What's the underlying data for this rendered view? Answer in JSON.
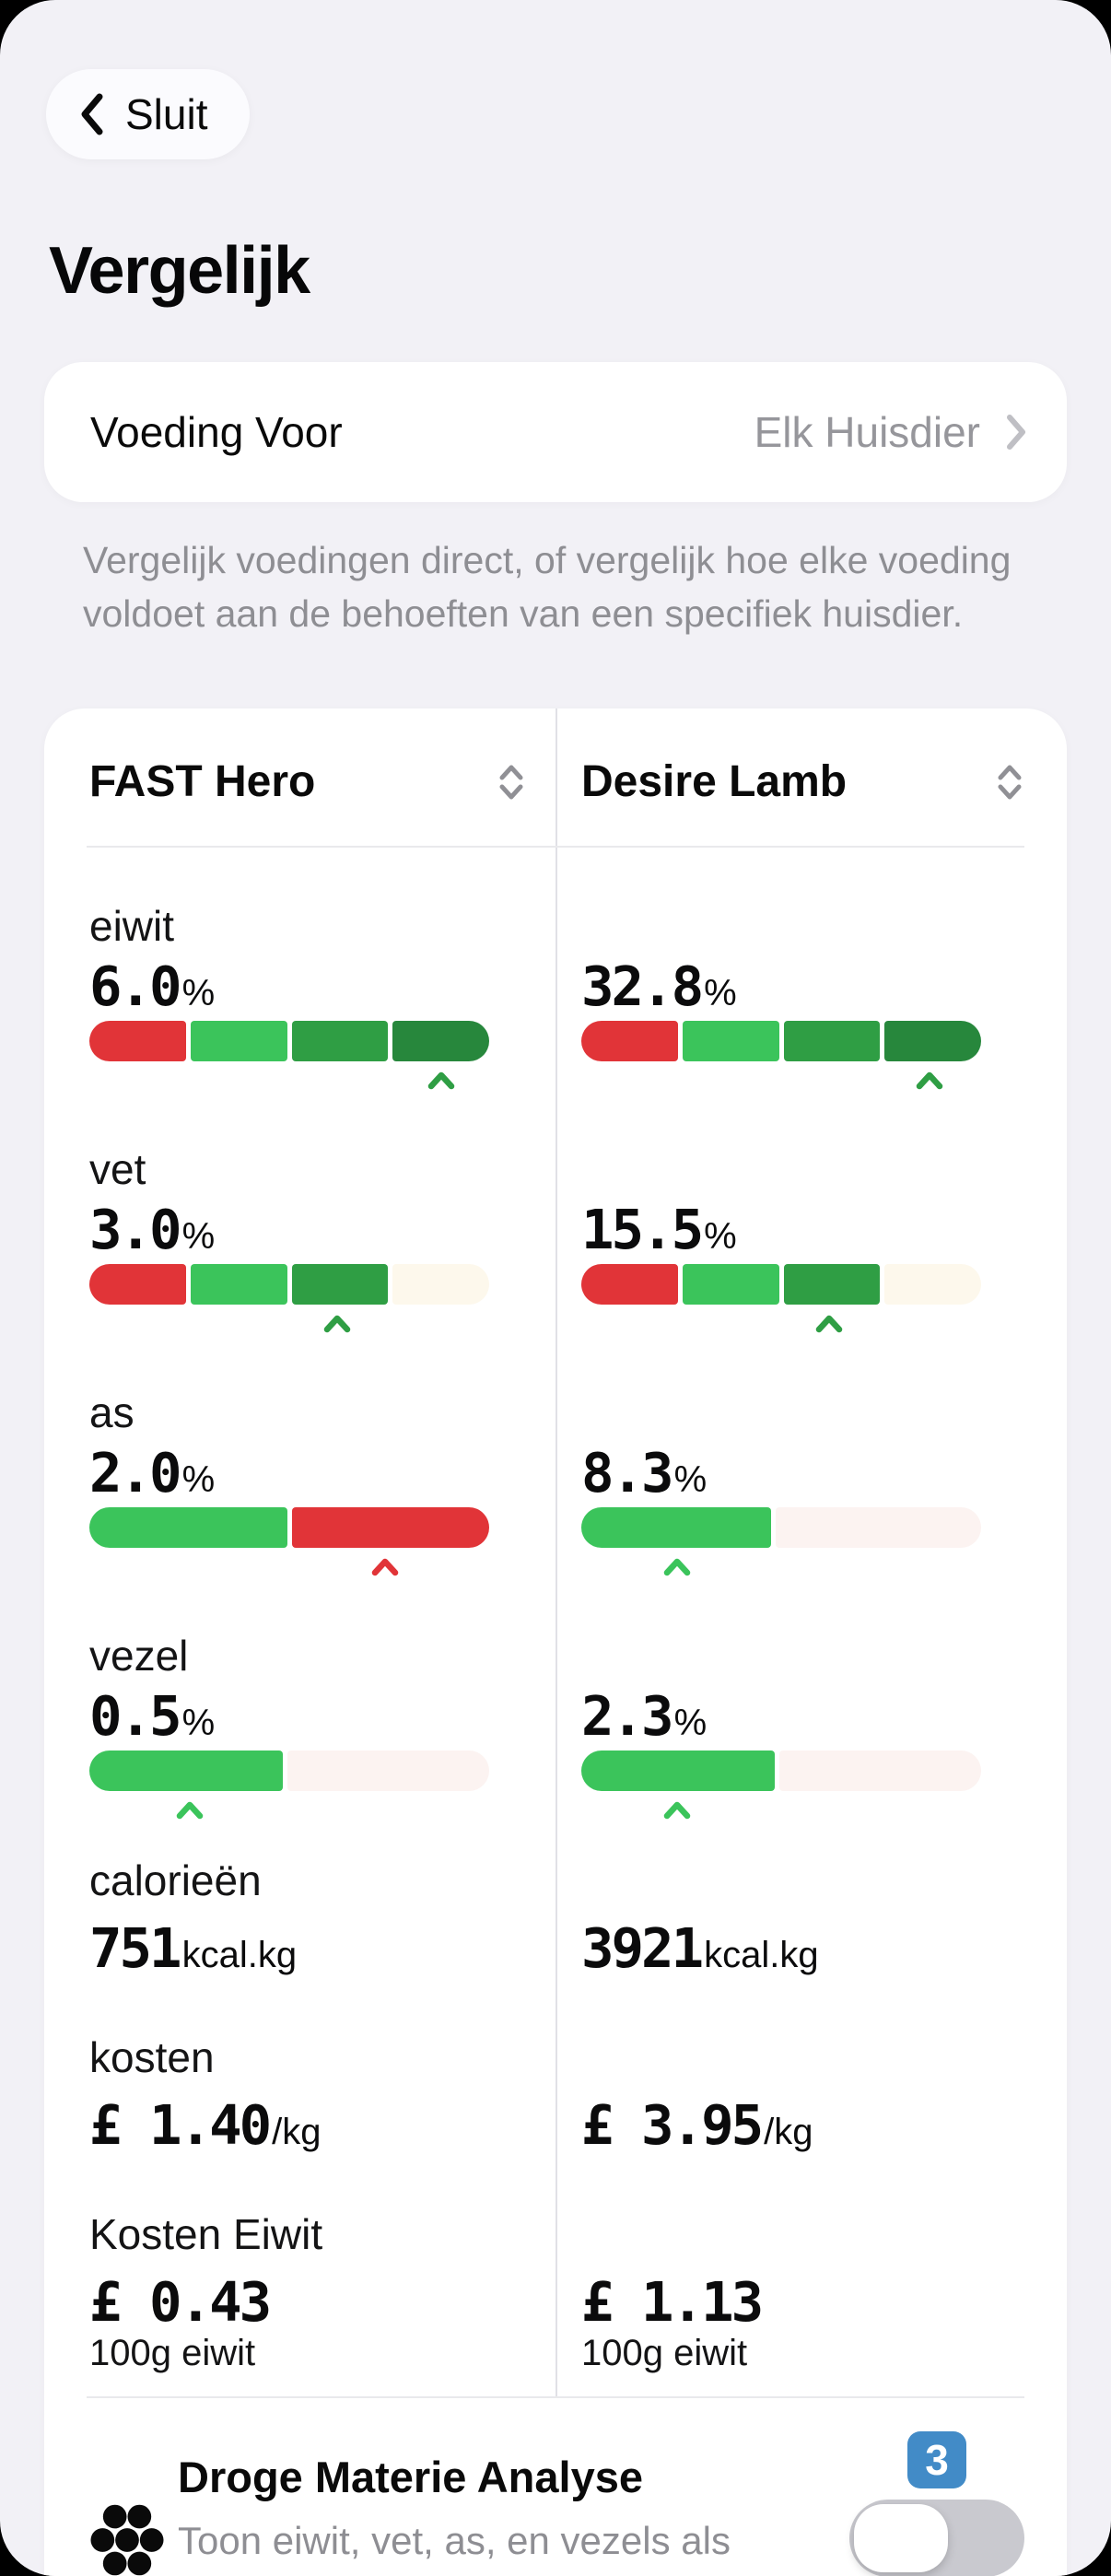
{
  "screen": {
    "back_button": {
      "label": "Sluit"
    },
    "title": "Vergelijk",
    "food_for": {
      "label": "Voeding Voor",
      "value": "Elk Huisdier"
    },
    "description": "Vergelijk voedingen direct, of vergelijk hoe elke voeding voldoet aan de behoeften van een specifiek huisdier."
  },
  "palette": {
    "background": "#F2F1F6",
    "card": "#FFFFFF",
    "red": "#E13438",
    "green_bright": "#3BC45B",
    "green_mid": "#2F9E44",
    "green_dark": "#27873C",
    "empty_cream": "#FDF8EC",
    "empty_pink": "#FCF3F1",
    "badge_blue": "#428BC7",
    "muted_text": "#8E8E93",
    "toggle_track": "#C9C9CF"
  },
  "table": {
    "columns": [
      {
        "name": "FAST Hero"
      },
      {
        "name": "Desire Lamb"
      }
    ],
    "rows": [
      {
        "label": "eiwit",
        "left": {
          "value": "6.0",
          "unit": "%",
          "bar": {
            "segments": [
              {
                "color": "#E13438",
                "width": 25
              },
              {
                "color": "#3BC45B",
                "width": 25
              },
              {
                "color": "#2F9E44",
                "width": 25
              },
              {
                "color": "#27873C",
                "width": 25
              }
            ],
            "caret": {
              "position": 88,
              "color": "#2F9E44"
            }
          }
        },
        "right": {
          "value": "32.8",
          "unit": "%",
          "bar": {
            "segments": [
              {
                "color": "#E13438",
                "width": 25
              },
              {
                "color": "#3BC45B",
                "width": 25
              },
              {
                "color": "#2F9E44",
                "width": 25
              },
              {
                "color": "#27873C",
                "width": 25
              }
            ],
            "caret": {
              "position": 87,
              "color": "#2F9E44"
            }
          }
        }
      },
      {
        "label": "vet",
        "left": {
          "value": "3.0",
          "unit": "%",
          "bar": {
            "segments": [
              {
                "color": "#E13438",
                "width": 25
              },
              {
                "color": "#3BC45B",
                "width": 25
              },
              {
                "color": "#2F9E44",
                "width": 25
              },
              {
                "color": "#FDF8EC",
                "width": 25
              }
            ],
            "caret": {
              "position": 62,
              "color": "#2F9E44"
            }
          }
        },
        "right": {
          "value": "15.5",
          "unit": "%",
          "bar": {
            "segments": [
              {
                "color": "#E13438",
                "width": 25
              },
              {
                "color": "#3BC45B",
                "width": 25
              },
              {
                "color": "#2F9E44",
                "width": 25
              },
              {
                "color": "#FDF8EC",
                "width": 25
              }
            ],
            "caret": {
              "position": 62,
              "color": "#2F9E44"
            }
          }
        }
      },
      {
        "label": "as",
        "left": {
          "value": "2.0",
          "unit": "%",
          "bar": {
            "segments": [
              {
                "color": "#3BC45B",
                "width": 50
              },
              {
                "color": "#E13438",
                "width": 50
              }
            ],
            "caret": {
              "position": 74,
              "color": "#E13438"
            }
          }
        },
        "right": {
          "value": "8.3",
          "unit": "%",
          "bar": {
            "segments": [
              {
                "color": "#3BC45B",
                "width": 48
              },
              {
                "color": "#FCF3F1",
                "width": 52
              }
            ],
            "caret": {
              "position": 24,
              "color": "#3BC45B"
            }
          }
        }
      },
      {
        "label": "vezel",
        "left": {
          "value": "0.5",
          "unit": "%",
          "bar": {
            "segments": [
              {
                "color": "#3BC45B",
                "width": 49
              },
              {
                "color": "#FCF3F1",
                "width": 51
              }
            ],
            "caret": {
              "position": 25,
              "color": "#3BC45B"
            }
          }
        },
        "right": {
          "value": "2.3",
          "unit": "%",
          "bar": {
            "segments": [
              {
                "color": "#3BC45B",
                "width": 49
              },
              {
                "color": "#FCF3F1",
                "width": 51
              }
            ],
            "caret": {
              "position": 24,
              "color": "#3BC45B"
            }
          }
        }
      },
      {
        "label": "calorieën",
        "left": {
          "value": "751",
          "unit": "kcal.kg"
        },
        "right": {
          "value": "3921",
          "unit": "kcal.kg"
        }
      },
      {
        "label": "kosten",
        "left": {
          "value": "£ 1.40",
          "unit": "/kg"
        },
        "right": {
          "value": "£ 3.95",
          "unit": "/kg"
        }
      },
      {
        "label": "Kosten Eiwit",
        "left": {
          "value": "£ 0.43",
          "sub": "100g eiwit"
        },
        "right": {
          "value": "£ 1.13",
          "sub": "100g eiwit"
        }
      }
    ]
  },
  "dry_matter": {
    "title": "Droge Materie Analyse",
    "description": "Toon eiwit, vet, as, en vezels als percentage droge materie.",
    "badge_count": "3",
    "toggle_on": false
  }
}
